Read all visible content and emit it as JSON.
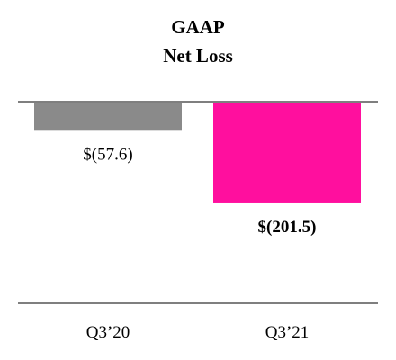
{
  "chart_data": {
    "type": "bar",
    "title_line1": "GAAP",
    "title_line2": "Net Loss",
    "categories": [
      "Q3’20",
      "Q3’21"
    ],
    "values": [
      -57.6,
      -201.5
    ],
    "value_labels": [
      "$(57.6)",
      "$(201.5)"
    ],
    "value_label_bold": [
      false,
      true
    ],
    "colors": [
      "#8a8a8a",
      "#ff0f9e"
    ],
    "axis_color": "#7f7f7f",
    "ylim": [
      -400,
      0
    ],
    "grid": false,
    "legend": "none"
  }
}
